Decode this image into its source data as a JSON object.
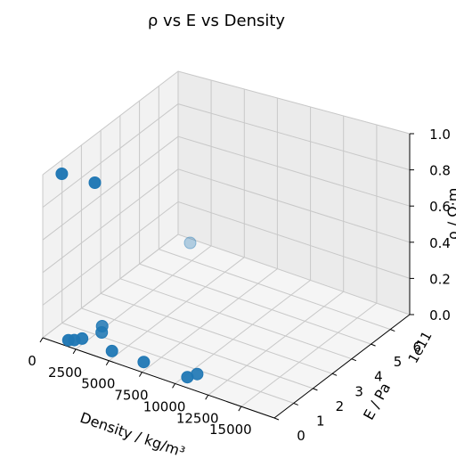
{
  "chart_data": {
    "type": "scatter",
    "title": "ρ vs E vs Density",
    "xlabel": "Density / kg/m³",
    "ylabel": "E / Pa",
    "zlabel": "ρ / Ω·m",
    "grid": true,
    "marker_color": "#1f77b4",
    "xlim": [
      0,
      17500
    ],
    "ylim": [
      0,
      700000000000.0
    ],
    "zlim": [
      0,
      1.0
    ],
    "x_ticks": [
      0,
      2500,
      5000,
      7500,
      10000,
      12500,
      15000
    ],
    "x_tick_labels": [
      "0",
      "2500",
      "5000",
      "7500",
      "10000",
      "12500",
      "15000"
    ],
    "y_ticks": [
      0,
      100000000000.0,
      200000000000.0,
      300000000000.0,
      400000000000.0,
      500000000000.0,
      600000000000.0
    ],
    "y_tick_labels": [
      "0",
      "1",
      "2",
      "3",
      "4",
      "5",
      "6"
    ],
    "y_offset_label": "1e11",
    "z_ticks": [
      0,
      0.2,
      0.4,
      0.6,
      0.8,
      1.0
    ],
    "z_tick_labels": [
      "0.0",
      "0.2",
      "0.4",
      "0.6",
      "0.8",
      "1.0"
    ],
    "points": [
      {
        "x": 1000,
        "y": 30000000000.0,
        "z": 1.0
      },
      {
        "x": 3500,
        "y": 30000000000.0,
        "z": 1.0
      },
      {
        "x": 1500,
        "y": 30000000000.0,
        "z": 0.0
      },
      {
        "x": 1800,
        "y": 40000000000.0,
        "z": 0.0
      },
      {
        "x": 2100,
        "y": 60000000000.0,
        "z": 0.0
      },
      {
        "x": 2300,
        "y": 150000000000.0,
        "z": 0.0
      },
      {
        "x": 2700,
        "y": 120000000000.0,
        "z": 0.0
      },
      {
        "x": 4500,
        "y": 50000000000.0,
        "z": 0.0
      },
      {
        "x": 6900,
        "y": 50000000000.0,
        "z": 0.0
      },
      {
        "x": 10200,
        "y": 50000000000.0,
        "z": 0.0
      },
      {
        "x": 10500,
        "y": 80000000000.0,
        "z": 0.0
      },
      {
        "x": 1200,
        "y": 680000000000.0,
        "z": 0.0
      }
    ]
  }
}
